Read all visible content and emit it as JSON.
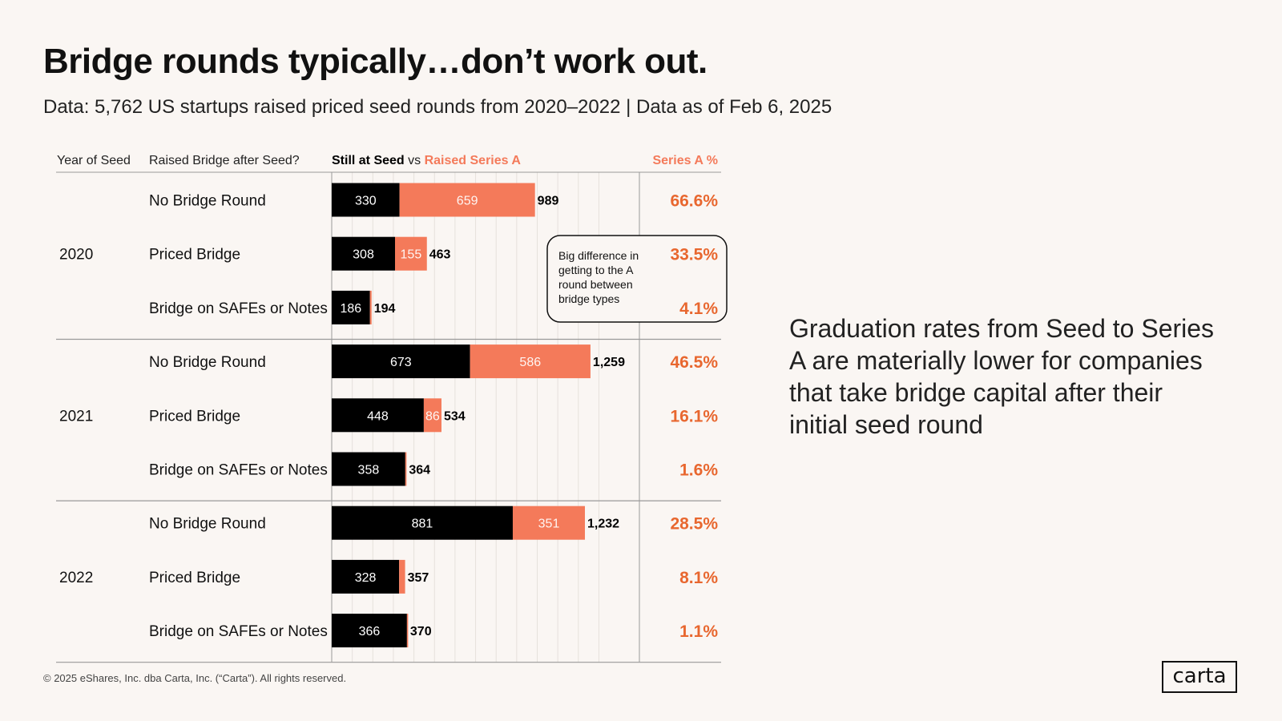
{
  "header": {
    "title": "Bridge rounds typically…don’t work out.",
    "subtitle": "Data: 5,762 US startups raised priced seed rounds from 2020–2022 | Data as of Feb 6, 2025"
  },
  "chart_data": {
    "type": "bar",
    "orientation": "horizontal",
    "stacked": true,
    "columns": {
      "year": "Year of Seed",
      "bridge": "Raised Bridge after Seed?",
      "legend_seed": "Still at Seed",
      "legend_vs": "vs",
      "legend_series_a": "Raised Series A",
      "pct": "Series A %"
    },
    "xlim": [
      0,
      1300
    ],
    "grid_step": 100,
    "groups": [
      {
        "year": "2020",
        "rows": [
          {
            "label": "No Bridge Round",
            "still_at_seed": 330,
            "raised_series_a": 659,
            "still_label": "330",
            "series_a_label": "659",
            "total": "989",
            "series_a_pct": "66.6%"
          },
          {
            "label": "Priced Bridge",
            "still_at_seed": 308,
            "raised_series_a": 155,
            "still_label": "308",
            "series_a_label": "155",
            "total": "463",
            "series_a_pct": "33.5%"
          },
          {
            "label": "Bridge on SAFEs or Notes",
            "still_at_seed": 186,
            "raised_series_a": 8,
            "still_label": "186",
            "series_a_label": "",
            "total": "194",
            "series_a_pct": "4.1%"
          }
        ]
      },
      {
        "year": "2021",
        "rows": [
          {
            "label": "No Bridge Round",
            "still_at_seed": 673,
            "raised_series_a": 586,
            "still_label": "673",
            "series_a_label": "586",
            "total": "1,259",
            "series_a_pct": "46.5%"
          },
          {
            "label": "Priced Bridge",
            "still_at_seed": 448,
            "raised_series_a": 86,
            "still_label": "448",
            "series_a_label": "86",
            "total": "534",
            "series_a_pct": "16.1%"
          },
          {
            "label": "Bridge on SAFEs or Notes",
            "still_at_seed": 358,
            "raised_series_a": 6,
            "still_label": "358",
            "series_a_label": "",
            "total": "364",
            "series_a_pct": "1.6%"
          }
        ]
      },
      {
        "year": "2022",
        "rows": [
          {
            "label": "No Bridge Round",
            "still_at_seed": 881,
            "raised_series_a": 351,
            "still_label": "881",
            "series_a_label": "351",
            "total": "1,232",
            "series_a_pct": "28.5%"
          },
          {
            "label": "Priced Bridge",
            "still_at_seed": 328,
            "raised_series_a": 29,
            "still_label": "328",
            "series_a_label": "",
            "total": "357",
            "series_a_pct": "8.1%"
          },
          {
            "label": "Bridge on SAFEs or Notes",
            "still_at_seed": 366,
            "raised_series_a": 4,
            "still_label": "366",
            "series_a_label": "",
            "total": "370",
            "series_a_pct": "1.1%"
          }
        ]
      }
    ],
    "callout": "Big difference in getting to the A round between bridge types",
    "colors": {
      "seed": "#000000",
      "series_a": "#f47a5a",
      "pct_text": "#e8672f",
      "grid": "#e6e1dc",
      "rule": "#999999"
    }
  },
  "annotation": "Graduation rates from Seed to Series A are materially lower for companies that take bridge capital after their initial seed round",
  "footer": "© 2025 eShares, Inc. dba Carta, Inc. (“Carta”). All rights reserved.",
  "logo": "carta"
}
